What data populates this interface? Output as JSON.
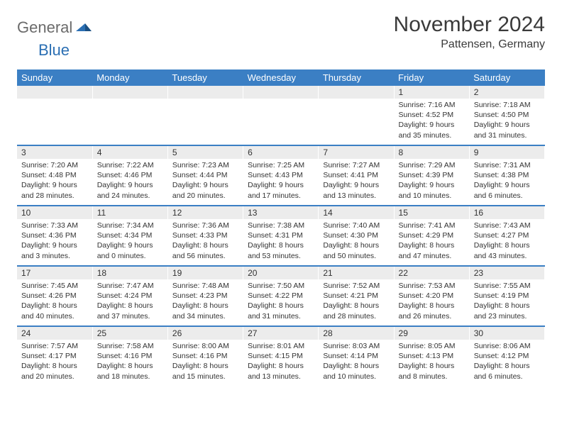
{
  "brand": {
    "part1": "General",
    "part2": "Blue"
  },
  "title": "November 2024",
  "subtitle": "Pattensen, Germany",
  "colors": {
    "header_bg": "#3b7fc4",
    "daynum_bg": "#ececec",
    "week_divider": "#3b7fc4",
    "text": "#333333",
    "title_text": "#3a3a3a",
    "logo_gray": "#6b6b6b",
    "logo_blue": "#2b6fb3"
  },
  "weekdays": [
    "Sunday",
    "Monday",
    "Tuesday",
    "Wednesday",
    "Thursday",
    "Friday",
    "Saturday"
  ],
  "weeks": [
    {
      "nums": [
        "",
        "",
        "",
        "",
        "",
        "1",
        "2"
      ],
      "info": [
        "",
        "",
        "",
        "",
        "",
        "Sunrise: 7:16 AM\nSunset: 4:52 PM\nDaylight: 9 hours and 35 minutes.",
        "Sunrise: 7:18 AM\nSunset: 4:50 PM\nDaylight: 9 hours and 31 minutes."
      ]
    },
    {
      "nums": [
        "3",
        "4",
        "5",
        "6",
        "7",
        "8",
        "9"
      ],
      "info": [
        "Sunrise: 7:20 AM\nSunset: 4:48 PM\nDaylight: 9 hours and 28 minutes.",
        "Sunrise: 7:22 AM\nSunset: 4:46 PM\nDaylight: 9 hours and 24 minutes.",
        "Sunrise: 7:23 AM\nSunset: 4:44 PM\nDaylight: 9 hours and 20 minutes.",
        "Sunrise: 7:25 AM\nSunset: 4:43 PM\nDaylight: 9 hours and 17 minutes.",
        "Sunrise: 7:27 AM\nSunset: 4:41 PM\nDaylight: 9 hours and 13 minutes.",
        "Sunrise: 7:29 AM\nSunset: 4:39 PM\nDaylight: 9 hours and 10 minutes.",
        "Sunrise: 7:31 AM\nSunset: 4:38 PM\nDaylight: 9 hours and 6 minutes."
      ]
    },
    {
      "nums": [
        "10",
        "11",
        "12",
        "13",
        "14",
        "15",
        "16"
      ],
      "info": [
        "Sunrise: 7:33 AM\nSunset: 4:36 PM\nDaylight: 9 hours and 3 minutes.",
        "Sunrise: 7:34 AM\nSunset: 4:34 PM\nDaylight: 9 hours and 0 minutes.",
        "Sunrise: 7:36 AM\nSunset: 4:33 PM\nDaylight: 8 hours and 56 minutes.",
        "Sunrise: 7:38 AM\nSunset: 4:31 PM\nDaylight: 8 hours and 53 minutes.",
        "Sunrise: 7:40 AM\nSunset: 4:30 PM\nDaylight: 8 hours and 50 minutes.",
        "Sunrise: 7:41 AM\nSunset: 4:29 PM\nDaylight: 8 hours and 47 minutes.",
        "Sunrise: 7:43 AM\nSunset: 4:27 PM\nDaylight: 8 hours and 43 minutes."
      ]
    },
    {
      "nums": [
        "17",
        "18",
        "19",
        "20",
        "21",
        "22",
        "23"
      ],
      "info": [
        "Sunrise: 7:45 AM\nSunset: 4:26 PM\nDaylight: 8 hours and 40 minutes.",
        "Sunrise: 7:47 AM\nSunset: 4:24 PM\nDaylight: 8 hours and 37 minutes.",
        "Sunrise: 7:48 AM\nSunset: 4:23 PM\nDaylight: 8 hours and 34 minutes.",
        "Sunrise: 7:50 AM\nSunset: 4:22 PM\nDaylight: 8 hours and 31 minutes.",
        "Sunrise: 7:52 AM\nSunset: 4:21 PM\nDaylight: 8 hours and 28 minutes.",
        "Sunrise: 7:53 AM\nSunset: 4:20 PM\nDaylight: 8 hours and 26 minutes.",
        "Sunrise: 7:55 AM\nSunset: 4:19 PM\nDaylight: 8 hours and 23 minutes."
      ]
    },
    {
      "nums": [
        "24",
        "25",
        "26",
        "27",
        "28",
        "29",
        "30"
      ],
      "info": [
        "Sunrise: 7:57 AM\nSunset: 4:17 PM\nDaylight: 8 hours and 20 minutes.",
        "Sunrise: 7:58 AM\nSunset: 4:16 PM\nDaylight: 8 hours and 18 minutes.",
        "Sunrise: 8:00 AM\nSunset: 4:16 PM\nDaylight: 8 hours and 15 minutes.",
        "Sunrise: 8:01 AM\nSunset: 4:15 PM\nDaylight: 8 hours and 13 minutes.",
        "Sunrise: 8:03 AM\nSunset: 4:14 PM\nDaylight: 8 hours and 10 minutes.",
        "Sunrise: 8:05 AM\nSunset: 4:13 PM\nDaylight: 8 hours and 8 minutes.",
        "Sunrise: 8:06 AM\nSunset: 4:12 PM\nDaylight: 8 hours and 6 minutes."
      ]
    }
  ]
}
